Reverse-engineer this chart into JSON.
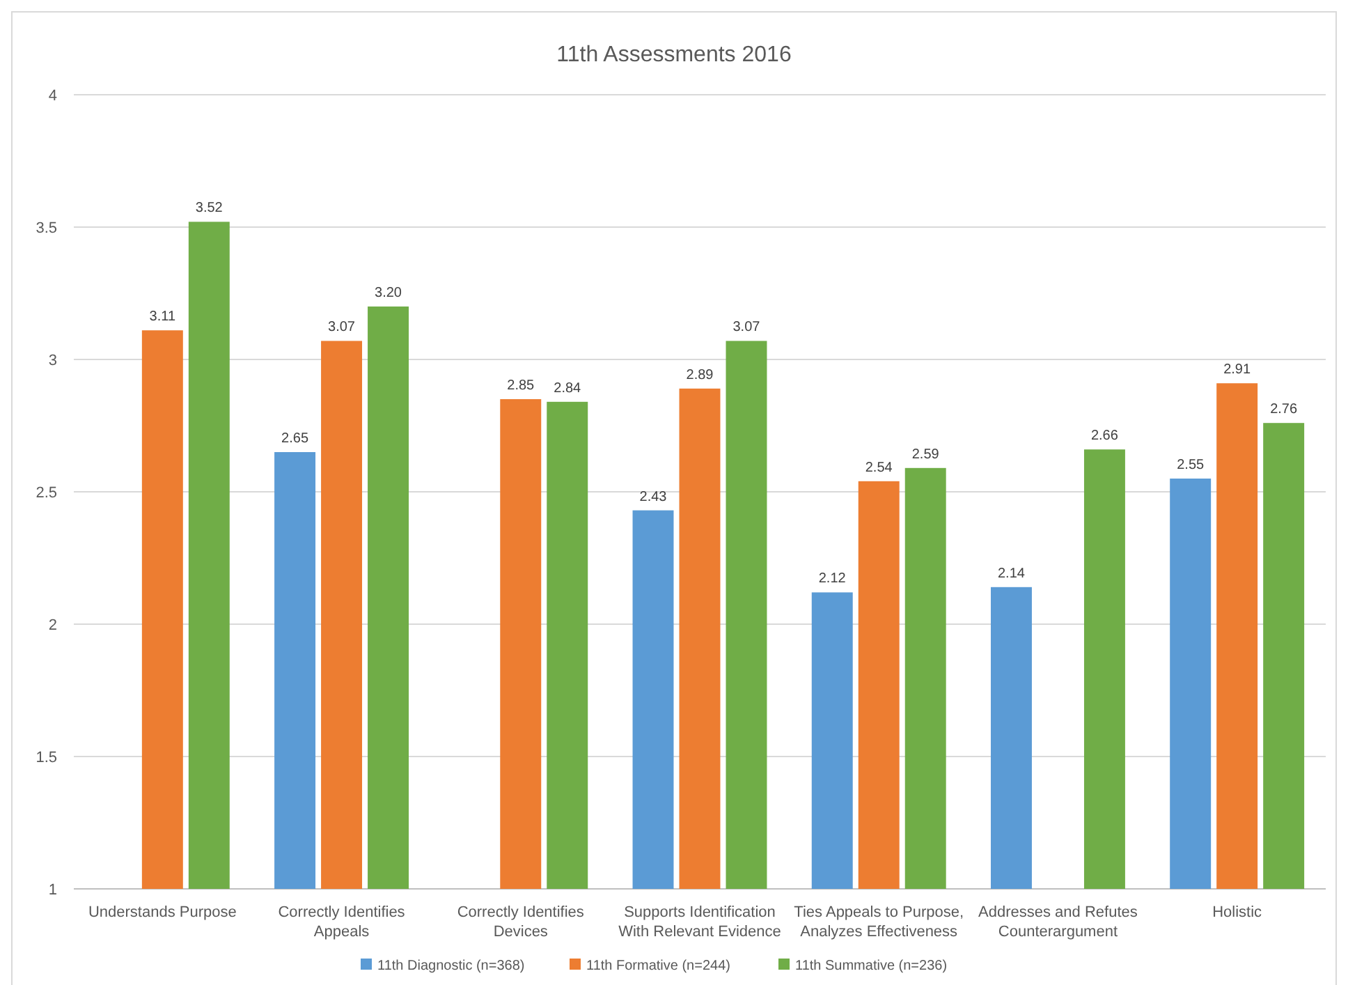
{
  "chart_data": {
    "type": "bar",
    "title": "11th Assessments 2016",
    "categories": [
      "Understands Purpose",
      "Correctly Identifies Appeals",
      "Correctly Identifies Devices",
      "Supports Identification With Relevant Evidence",
      "Ties Appeals to Purpose, Analyzes Effectiveness",
      "Addresses and Refutes Counterargument",
      "Holistic"
    ],
    "series": [
      {
        "name": "11th Diagnostic (n=368)",
        "color": "#5b9bd5",
        "values": [
          null,
          2.65,
          null,
          2.43,
          2.12,
          2.14,
          2.55
        ],
        "value_labels": [
          null,
          "2.65",
          null,
          "2.43",
          "2.12",
          "2.14",
          "2.55"
        ]
      },
      {
        "name": "11th Formative (n=244)",
        "color": "#ed7d31",
        "values": [
          3.11,
          3.07,
          2.85,
          2.89,
          2.54,
          null,
          2.91
        ],
        "value_labels": [
          "3.11",
          "3.07",
          "2.85",
          "2.89",
          "2.54",
          null,
          "2.91"
        ]
      },
      {
        "name": "11th Summative (n=236)",
        "color": "#70ad47",
        "values": [
          3.52,
          3.2,
          2.84,
          3.07,
          2.59,
          2.66,
          2.76
        ],
        "value_labels": [
          "3.52",
          "3.20",
          "2.84",
          "3.07",
          "2.59",
          "2.66",
          "2.76"
        ]
      }
    ],
    "ylim": [
      1,
      4
    ],
    "yticks": [
      1,
      1.5,
      2,
      2.5,
      3,
      3.5,
      4
    ],
    "grid": "y",
    "legend": "bottom"
  }
}
